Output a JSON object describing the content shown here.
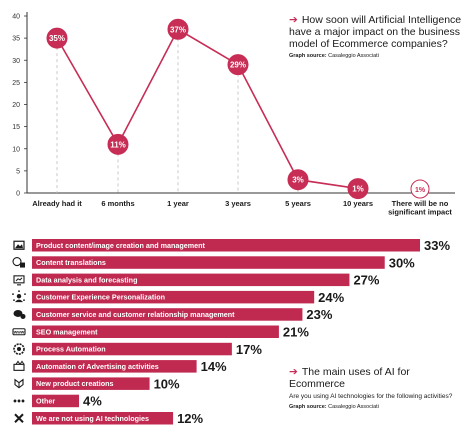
{
  "top_chart": {
    "arrow": "➔",
    "title": "How soon will Artificial Intelligence have a major impact on the business model of Ecommerce companies?",
    "source_label": "Graph source:",
    "source": "Casaleggio Associati"
  },
  "bottom_chart": {
    "arrow": "➔",
    "title": "The main uses of AI for Ecommerce",
    "subtitle": "Are you using AI technologies for the following activities?",
    "source_label": "Graph source:",
    "source": "Casaleggio Associati"
  },
  "colors": {
    "accent": "#c72d55",
    "bar": "#c02a51",
    "grid": "#bdbdbd",
    "axis": "#333333"
  },
  "chart_data": [
    {
      "type": "line",
      "categories": [
        "Already had it",
        "6 months",
        "1 year",
        "3 years",
        "5 years",
        "10 years",
        "There will be no significant impact"
      ],
      "values": [
        35,
        11,
        37,
        29,
        3,
        1,
        1
      ],
      "value_labels": [
        "35%",
        "11%",
        "37%",
        "29%",
        "3%",
        "1%",
        "1%"
      ],
      "yticks": [
        0,
        5,
        10,
        15,
        20,
        25,
        30,
        35,
        40
      ],
      "ylim": [
        0,
        40
      ],
      "title": "How soon will Artificial Intelligence have a major impact on the business model of Ecommerce companies?"
    },
    {
      "type": "bar",
      "orientation": "horizontal",
      "categories": [
        "Product content/image creation and management",
        "Content translations",
        "Data analysis and forecasting",
        "Customer Experience Personalization",
        "Customer service and customer relationship management",
        "SEO management",
        "Process Automation",
        "Automation of Advertising activities",
        "New product creations",
        "Other",
        "We are not using AI technologies"
      ],
      "values": [
        33,
        30,
        27,
        24,
        23,
        21,
        17,
        14,
        10,
        4,
        12
      ],
      "value_labels": [
        "33%",
        "30%",
        "27%",
        "24%",
        "23%",
        "21%",
        "17%",
        "14%",
        "10%",
        "4%",
        "12%"
      ],
      "icons": [
        "image-icon",
        "translate-icon",
        "analytics-icon",
        "personalization-icon",
        "chat-icon",
        "seo-icon",
        "automation-icon",
        "megaphone-icon",
        "product-icon",
        "more-icon",
        "cross-icon"
      ],
      "title": "The main uses of AI for Ecommerce"
    }
  ]
}
